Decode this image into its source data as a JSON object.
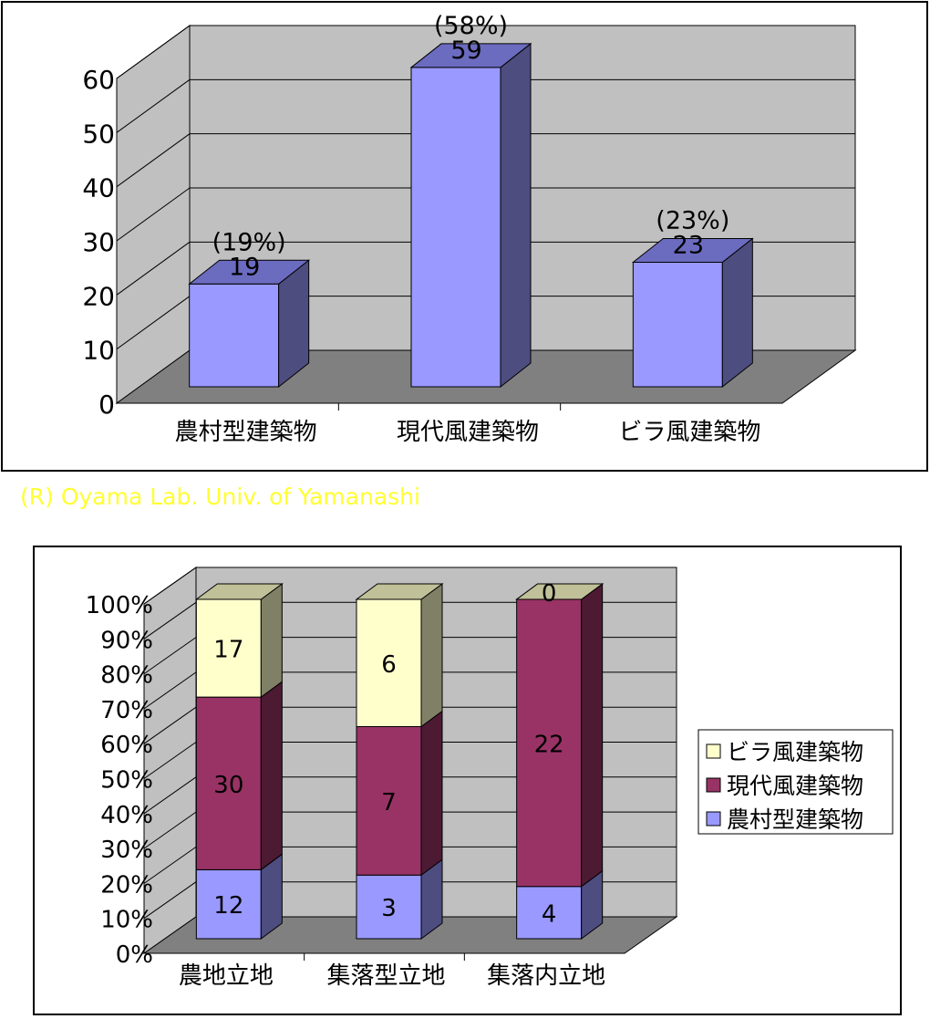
{
  "credit": "(R) Oyama Lab.  Univ. of Yamanashi",
  "colors": {
    "wall": "#c0c0c0",
    "floor": "#808080",
    "bar_blue": "#9999ff",
    "bar_maroon": "#993366",
    "bar_yellow": "#ffffcc"
  },
  "chart_data": [
    {
      "type": "bar",
      "title": "",
      "xlabel": "",
      "ylabel": "",
      "categories": [
        "農村型建築物",
        "現代風建築物",
        "ビラ風建築物"
      ],
      "values": [
        19,
        59,
        23
      ],
      "percent_labels": [
        "(19%)",
        "(58%)",
        "(23%)"
      ],
      "value_labels": [
        "19",
        "59",
        "23"
      ],
      "ylim": [
        0,
        60
      ],
      "y_ticks": [
        "0",
        "10",
        "20",
        "30",
        "40",
        "50",
        "60"
      ],
      "grid": true,
      "legend": "none"
    },
    {
      "type": "bar",
      "stacked": "percent",
      "title": "",
      "xlabel": "",
      "ylabel": "",
      "categories": [
        "農地立地",
        "集落型立地",
        "集落内立地"
      ],
      "series": [
        {
          "name": "農村型建築物",
          "values": [
            12,
            3,
            4
          ]
        },
        {
          "name": "現代風建築物",
          "values": [
            30,
            7,
            22
          ]
        },
        {
          "name": "ビラ風建築物",
          "values": [
            17,
            6,
            0
          ]
        }
      ],
      "ylim": [
        0,
        100
      ],
      "y_ticks": [
        "0%",
        "10%",
        "20%",
        "30%",
        "40%",
        "50%",
        "60%",
        "70%",
        "80%",
        "90%",
        "100%"
      ],
      "grid": true,
      "legend": "right",
      "legend_order": [
        "ビラ風建築物",
        "現代風建築物",
        "農村型建築物"
      ]
    }
  ]
}
